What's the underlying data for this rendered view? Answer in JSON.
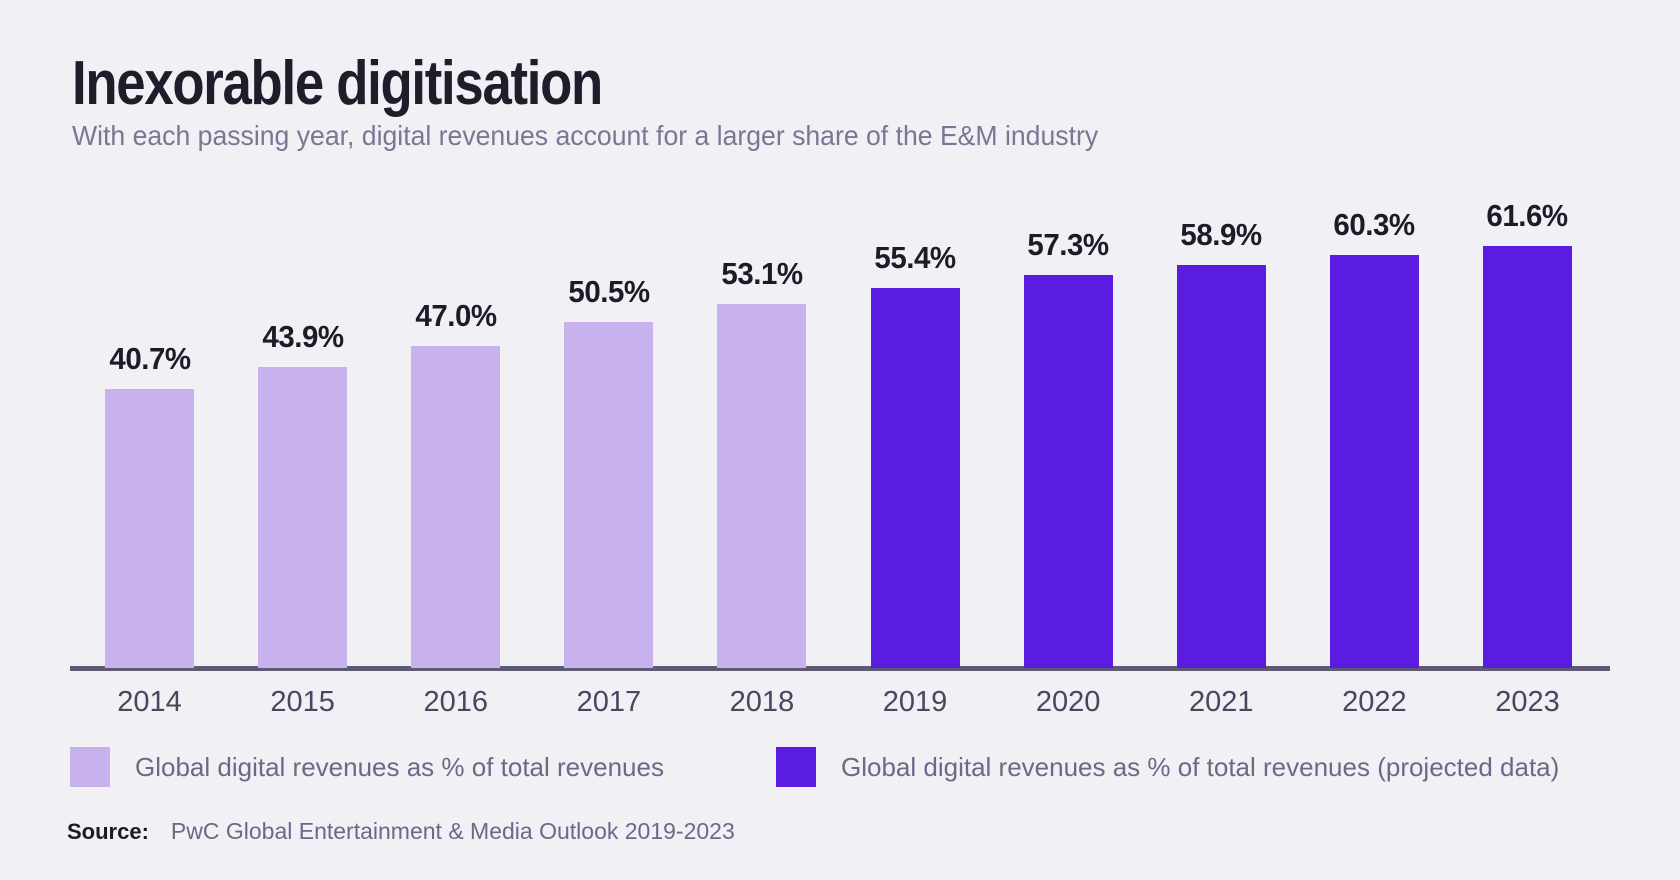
{
  "header": {
    "title": "Inexorable digitisation",
    "subtitle": "With each passing year, digital revenues account for a larger share of the E&M industry"
  },
  "chart_data": {
    "type": "bar",
    "title": "Inexorable digitisation",
    "subtitle": "With each passing year, digital revenues account for a larger share of the E&M industry",
    "categories": [
      "2014",
      "2015",
      "2016",
      "2017",
      "2018",
      "2019",
      "2020",
      "2021",
      "2022",
      "2023"
    ],
    "values": [
      40.7,
      43.9,
      47.0,
      50.5,
      53.1,
      55.4,
      57.3,
      58.9,
      60.3,
      61.6
    ],
    "value_labels": [
      "40.7%",
      "43.9%",
      "47.0%",
      "50.5%",
      "53.1%",
      "55.4%",
      "57.3%",
      "58.9%",
      "60.3%",
      "61.6%"
    ],
    "series": [
      {
        "name": "Global digital revenues as % of total revenues",
        "color": "#c7b2ee",
        "categories": [
          "2014",
          "2015",
          "2016",
          "2017",
          "2018"
        ],
        "values": [
          40.7,
          43.9,
          47.0,
          50.5,
          53.1
        ]
      },
      {
        "name": "Global digital revenues as % of total revenues (projected data)",
        "color": "#5a1ce0",
        "categories": [
          "2019",
          "2020",
          "2021",
          "2022",
          "2023"
        ],
        "values": [
          55.4,
          57.3,
          58.9,
          60.3,
          61.6
        ]
      }
    ],
    "xlabel": "",
    "ylabel": "",
    "ylim": [
      0,
      65
    ],
    "grid": false,
    "legend_position": "bottom",
    "value_suffix": "%"
  },
  "legend": {
    "items": [
      {
        "label": "Global digital revenues as % of total revenues",
        "color": "#c7b2ee"
      },
      {
        "label": "Global digital revenues as % of total revenues (projected data)",
        "color": "#5a1ce0"
      }
    ]
  },
  "source": {
    "label": "Source:",
    "text": "PwC Global Entertainment & Media Outlook 2019-2023"
  },
  "colors": {
    "background": "#f1f0f4",
    "bar_actual": "#c7b2ee",
    "bar_projected": "#5a1ce0",
    "axis_line": "#5f5a73",
    "value_label": "#1e1b29",
    "tick_label": "#4b4660",
    "title": "#201d2b",
    "subtitle": "#7c7694",
    "legend_text": "#6e6886"
  }
}
